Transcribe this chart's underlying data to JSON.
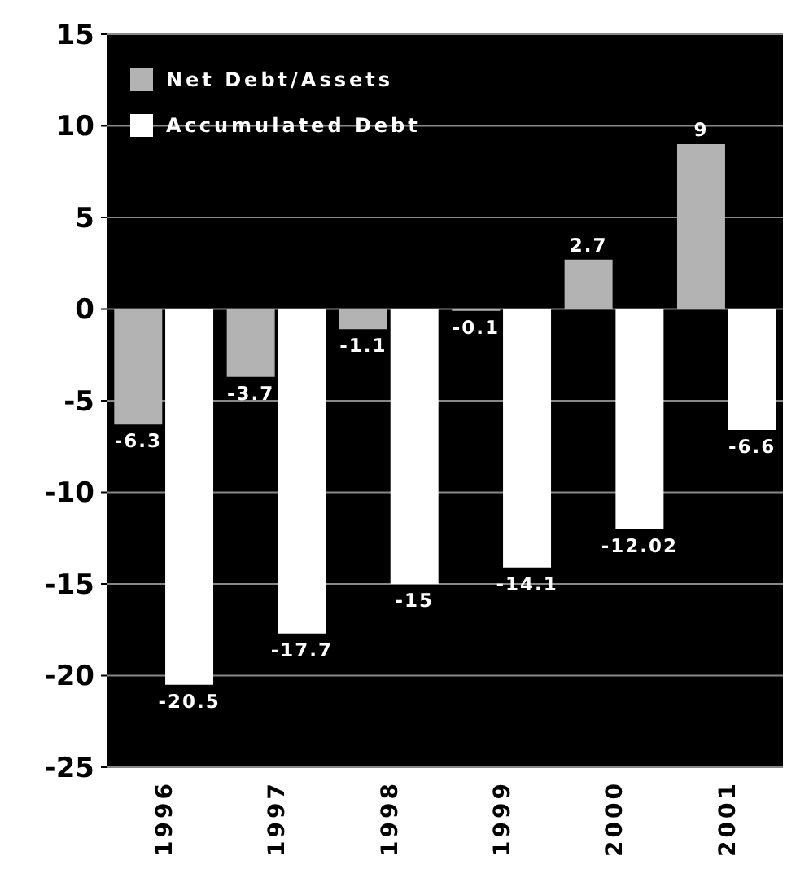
{
  "chart_data": {
    "type": "bar",
    "categories": [
      "1996",
      "1997",
      "1998",
      "1999",
      "2000",
      "2001"
    ],
    "series": [
      {
        "name": "Net Debt/Assets",
        "color": "#b3b3b3",
        "values": [
          -6.3,
          -3.7,
          -1.1,
          -0.1,
          2.7,
          9
        ]
      },
      {
        "name": "Accumulated Debt",
        "color": "#ffffff",
        "values": [
          -20.5,
          -17.7,
          -15,
          -14.1,
          -12.02,
          -6.6
        ]
      }
    ],
    "ylim": [
      -25,
      15
    ],
    "yticks": [
      -25,
      -20,
      -15,
      -10,
      -5,
      0,
      5,
      10,
      15
    ],
    "grid": "y",
    "legend": "top left",
    "data_labels": true
  }
}
